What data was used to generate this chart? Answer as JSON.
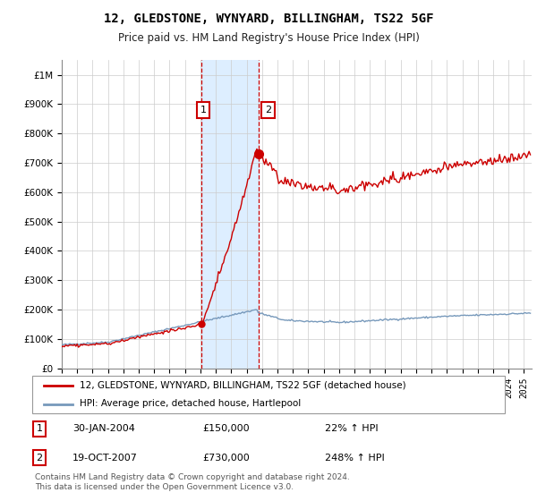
{
  "title": "12, GLEDSTONE, WYNYARD, BILLINGHAM, TS22 5GF",
  "subtitle": "Price paid vs. HM Land Registry's House Price Index (HPI)",
  "sale1_date": "30-JAN-2004",
  "sale1_price": 150000,
  "sale1_hpi_change": "22% ↑ HPI",
  "sale2_date": "19-OCT-2007",
  "sale2_price": 730000,
  "sale2_hpi_change": "248% ↑ HPI",
  "legend_line1": "12, GLEDSTONE, WYNYARD, BILLINGHAM, TS22 5GF (detached house)",
  "legend_line2": "HPI: Average price, detached house, Hartlepool",
  "footer": "Contains HM Land Registry data © Crown copyright and database right 2024.\nThis data is licensed under the Open Government Licence v3.0.",
  "hpi_color": "#7799bb",
  "price_color": "#cc0000",
  "shade_color": "#ddeeff",
  "vline_color": "#cc0000",
  "ylim_max": 1050000,
  "ylim_min": 0,
  "sale1_x": 2004.08,
  "sale2_x": 2007.8
}
